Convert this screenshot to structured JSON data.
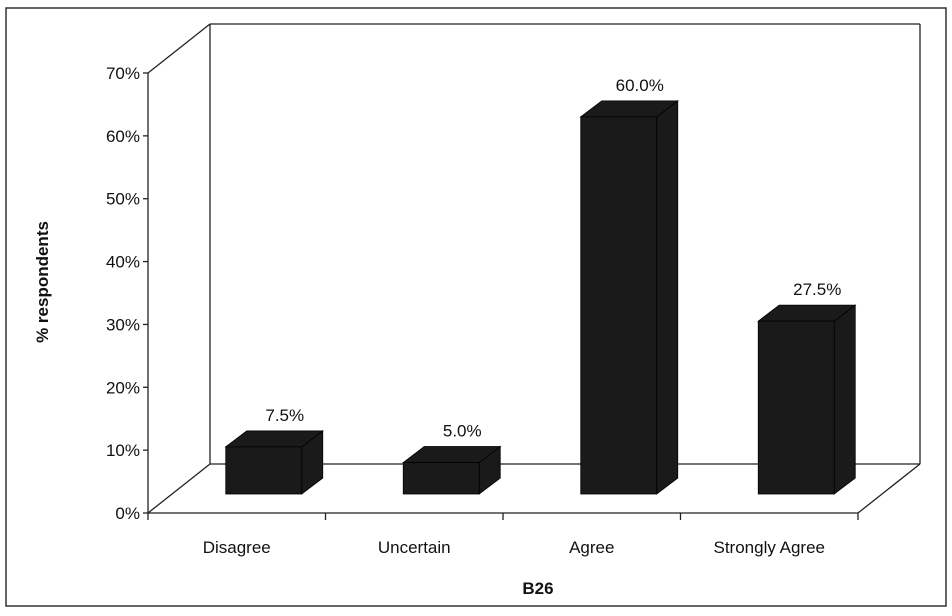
{
  "chart_data": {
    "type": "bar",
    "style": "3d-column",
    "categories": [
      "Disagree",
      "Uncertain",
      "Agree",
      "Strongly Agree"
    ],
    "values": [
      7.5,
      5.0,
      60.0,
      27.5
    ],
    "data_labels": [
      "7.5%",
      "5.0%",
      "60.0%",
      "27.5%"
    ],
    "xlabel": "B26",
    "ylabel": "% respondents",
    "ylim": [
      0,
      70
    ],
    "yticks": [
      "0%",
      "10%",
      "20%",
      "30%",
      "40%",
      "50%",
      "60%",
      "70%"
    ],
    "grid": false,
    "legend": "none",
    "colors": {
      "bar": "#1a1a1a",
      "axis": "#222222",
      "background": "#ffffff"
    }
  }
}
